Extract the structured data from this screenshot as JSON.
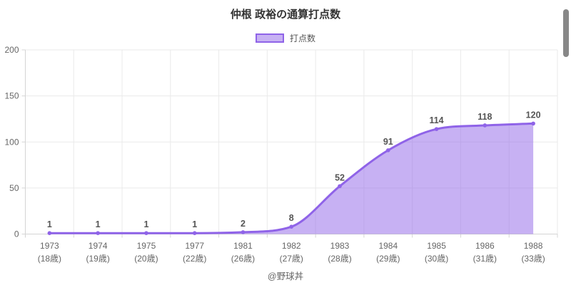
{
  "header": {
    "title": "仲根 政裕の通算打点数"
  },
  "legend": {
    "items": [
      {
        "label": "打点数"
      }
    ]
  },
  "chart_data": {
    "type": "area",
    "title": "仲根 政裕の通算打点数",
    "series_name": "打点数",
    "categories": [
      "1973",
      "1974",
      "1975",
      "1977",
      "1981",
      "1982",
      "1983",
      "1984",
      "1985",
      "1986",
      "1988"
    ],
    "categories_line2": [
      "(18歳)",
      "(19歳)",
      "(20歳)",
      "(22歳)",
      "(26歳)",
      "(27歳)",
      "(28歳)",
      "(29歳)",
      "(30歳)",
      "(31歳)",
      "(33歳)"
    ],
    "values": [
      1,
      1,
      1,
      1,
      2,
      8,
      52,
      91,
      114,
      118,
      120
    ],
    "ylim": [
      0,
      200
    ],
    "yticks": [
      0,
      50,
      100,
      150,
      200
    ],
    "grid": true,
    "legend_position": "top",
    "data_labels": true,
    "smoothing": "monotone",
    "colors": {
      "line": "#8f63e8",
      "fill_opacity": 0.5,
      "grid": "#eaeaea",
      "axis": "#d4d4d4",
      "tick_text": "#666666",
      "data_label": "#555555",
      "title_text": "#333333"
    }
  },
  "footer": {
    "credit": "@野球丼"
  }
}
